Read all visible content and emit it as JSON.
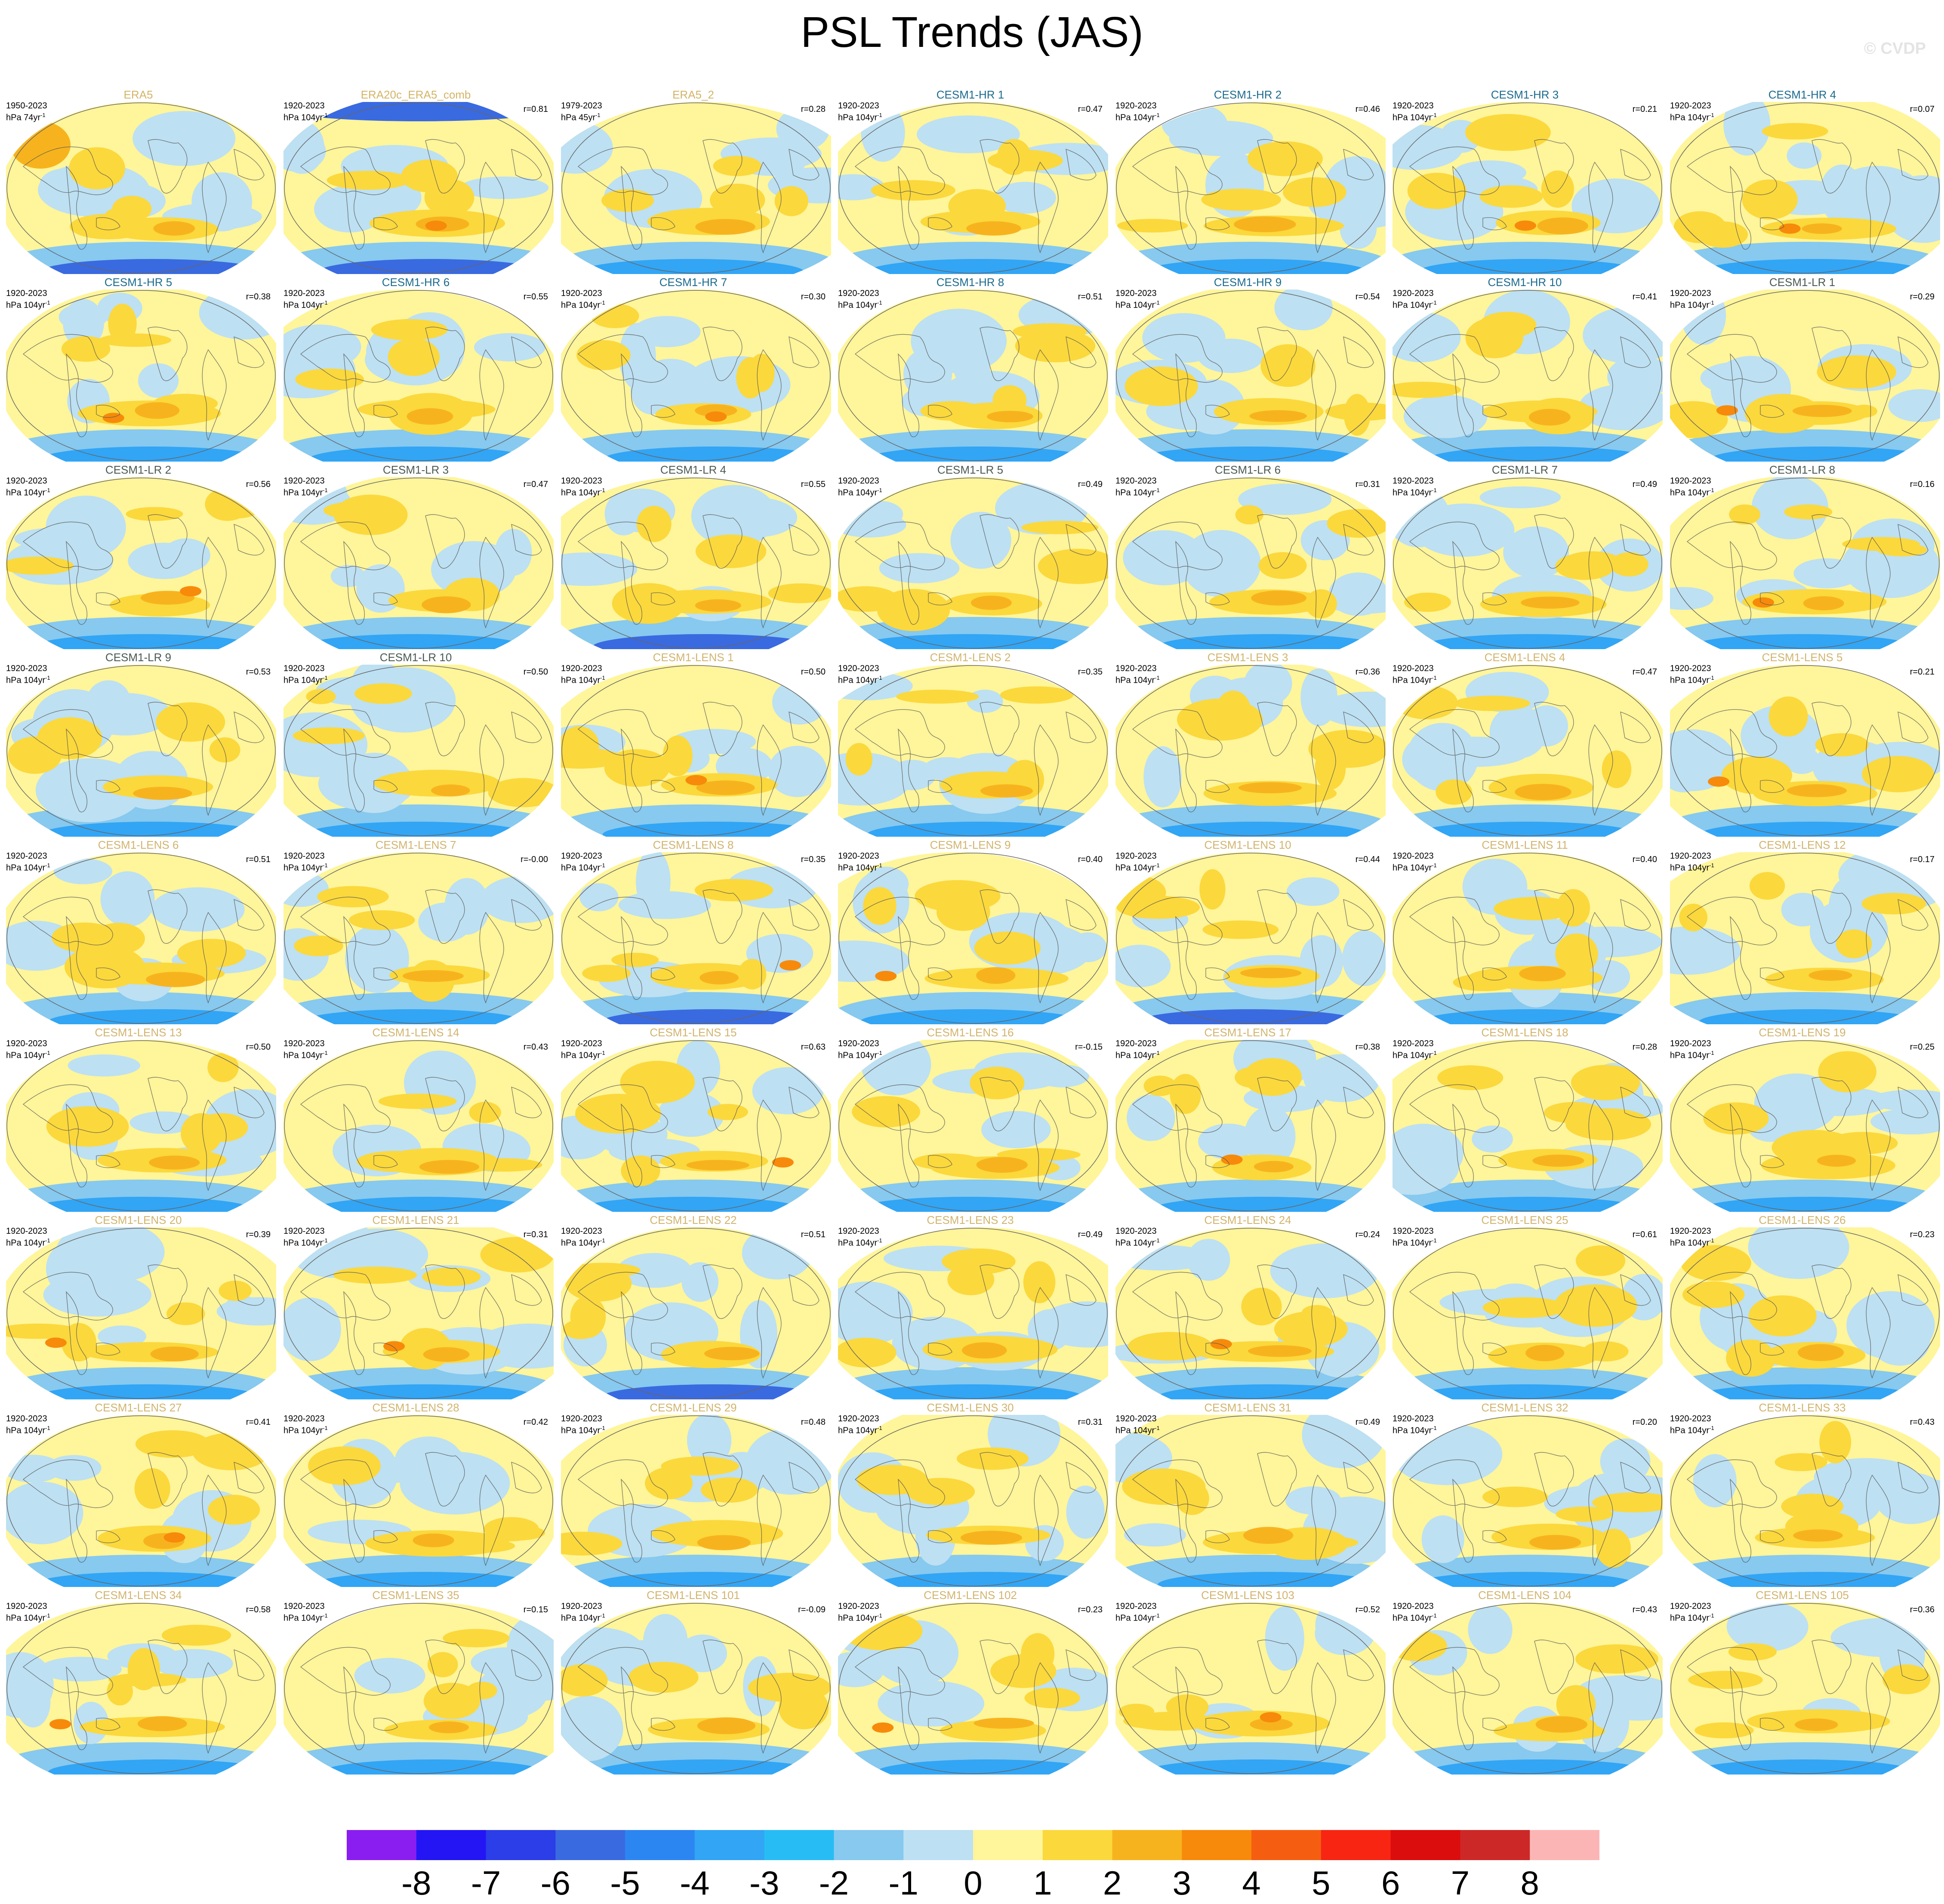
{
  "title": "PSL Trends (JAS)",
  "credit": "© CVDP",
  "panels": [
    {
      "title": "ERA5",
      "years": "1950-2023",
      "unit": "hPa 74yr",
      "r": "",
      "obs": true
    },
    {
      "title": "ERA20c_ERA5_comb",
      "years": "1920-2023",
      "unit": "hPa 104yr",
      "r": "r=0.81",
      "obs": true
    },
    {
      "title": "ERA5_2",
      "years": "1979-2023",
      "unit": "hPa 45yr",
      "r": "r=0.28",
      "obs": true
    },
    {
      "title": "CESM1-HR 1",
      "years": "1920-2023",
      "unit": "hPa 104yr",
      "r": "r=0.47"
    },
    {
      "title": "CESM1-HR 2",
      "years": "1920-2023",
      "unit": "hPa 104yr",
      "r": "r=0.46"
    },
    {
      "title": "CESM1-HR 3",
      "years": "1920-2023",
      "unit": "hPa 104yr",
      "r": "r=0.21"
    },
    {
      "title": "CESM1-HR 4",
      "years": "1920-2023",
      "unit": "hPa 104yr",
      "r": "r=0.07"
    },
    {
      "title": "CESM1-HR 5",
      "years": "1920-2023",
      "unit": "hPa 104yr",
      "r": "r=0.38"
    },
    {
      "title": "CESM1-HR 6",
      "years": "1920-2023",
      "unit": "hPa 104yr",
      "r": "r=0.55"
    },
    {
      "title": "CESM1-HR 7",
      "years": "1920-2023",
      "unit": "hPa 104yr",
      "r": "r=0.30"
    },
    {
      "title": "CESM1-HR 8",
      "years": "1920-2023",
      "unit": "hPa 104yr",
      "r": "r=0.51"
    },
    {
      "title": "CESM1-HR 9",
      "years": "1920-2023",
      "unit": "hPa 104yr",
      "r": "r=0.54"
    },
    {
      "title": "CESM1-HR 10",
      "years": "1920-2023",
      "unit": "hPa 104yr",
      "r": "r=0.41"
    },
    {
      "title": "CESM1-LR 1",
      "years": "1920-2023",
      "unit": "hPa 104yr",
      "r": "r=0.29"
    },
    {
      "title": "CESM1-LR 2",
      "years": "1920-2023",
      "unit": "hPa 104yr",
      "r": "r=0.56"
    },
    {
      "title": "CESM1-LR 3",
      "years": "1920-2023",
      "unit": "hPa 104yr",
      "r": "r=0.47"
    },
    {
      "title": "CESM1-LR 4",
      "years": "1920-2023",
      "unit": "hPa 104yr",
      "r": "r=0.55"
    },
    {
      "title": "CESM1-LR 5",
      "years": "1920-2023",
      "unit": "hPa 104yr",
      "r": "r=0.49"
    },
    {
      "title": "CESM1-LR 6",
      "years": "1920-2023",
      "unit": "hPa 104yr",
      "r": "r=0.31"
    },
    {
      "title": "CESM1-LR 7",
      "years": "1920-2023",
      "unit": "hPa 104yr",
      "r": "r=0.49"
    },
    {
      "title": "CESM1-LR 8",
      "years": "1920-2023",
      "unit": "hPa 104yr",
      "r": "r=0.16"
    },
    {
      "title": "CESM1-LR 9",
      "years": "1920-2023",
      "unit": "hPa 104yr",
      "r": "r=0.53"
    },
    {
      "title": "CESM1-LR 10",
      "years": "1920-2023",
      "unit": "hPa 104yr",
      "r": "r=0.50"
    },
    {
      "title": "CESM1-LENS 1",
      "years": "1920-2023",
      "unit": "hPa 104yr",
      "r": "r=0.50"
    },
    {
      "title": "CESM1-LENS 2",
      "years": "1920-2023",
      "unit": "hPa 104yr",
      "r": "r=0.35"
    },
    {
      "title": "CESM1-LENS 3",
      "years": "1920-2023",
      "unit": "hPa 104yr",
      "r": "r=0.36"
    },
    {
      "title": "CESM1-LENS 4",
      "years": "1920-2023",
      "unit": "hPa 104yr",
      "r": "r=0.47"
    },
    {
      "title": "CESM1-LENS 5",
      "years": "1920-2023",
      "unit": "hPa 104yr",
      "r": "r=0.21"
    },
    {
      "title": "CESM1-LENS 6",
      "years": "1920-2023",
      "unit": "hPa 104yr",
      "r": "r=0.51"
    },
    {
      "title": "CESM1-LENS 7",
      "years": "1920-2023",
      "unit": "hPa 104yr",
      "r": "r=-0.00"
    },
    {
      "title": "CESM1-LENS 8",
      "years": "1920-2023",
      "unit": "hPa 104yr",
      "r": "r=0.35"
    },
    {
      "title": "CESM1-LENS 9",
      "years": "1920-2023",
      "unit": "hPa 104yr",
      "r": "r=0.40"
    },
    {
      "title": "CESM1-LENS 10",
      "years": "1920-2023",
      "unit": "hPa 104yr",
      "r": "r=0.44"
    },
    {
      "title": "CESM1-LENS 11",
      "years": "1920-2023",
      "unit": "hPa 104yr",
      "r": "r=0.40"
    },
    {
      "title": "CESM1-LENS 12",
      "years": "1920-2023",
      "unit": "hPa 104yr",
      "r": "r=0.17"
    },
    {
      "title": "CESM1-LENS 13",
      "years": "1920-2023",
      "unit": "hPa 104yr",
      "r": "r=0.50"
    },
    {
      "title": "CESM1-LENS 14",
      "years": "1920-2023",
      "unit": "hPa 104yr",
      "r": "r=0.43"
    },
    {
      "title": "CESM1-LENS 15",
      "years": "1920-2023",
      "unit": "hPa 104yr",
      "r": "r=0.63"
    },
    {
      "title": "CESM1-LENS 16",
      "years": "1920-2023",
      "unit": "hPa 104yr",
      "r": "r=-0.15"
    },
    {
      "title": "CESM1-LENS 17",
      "years": "1920-2023",
      "unit": "hPa 104yr",
      "r": "r=0.38"
    },
    {
      "title": "CESM1-LENS 18",
      "years": "1920-2023",
      "unit": "hPa 104yr",
      "r": "r=0.28"
    },
    {
      "title": "CESM1-LENS 19",
      "years": "1920-2023",
      "unit": "hPa 104yr",
      "r": "r=0.25"
    },
    {
      "title": "CESM1-LENS 20",
      "years": "1920-2023",
      "unit": "hPa 104yr",
      "r": "r=0.39"
    },
    {
      "title": "CESM1-LENS 21",
      "years": "1920-2023",
      "unit": "hPa 104yr",
      "r": "r=0.31"
    },
    {
      "title": "CESM1-LENS 22",
      "years": "1920-2023",
      "unit": "hPa 104yr",
      "r": "r=0.51"
    },
    {
      "title": "CESM1-LENS 23",
      "years": "1920-2023",
      "unit": "hPa 104yr",
      "r": "r=0.49"
    },
    {
      "title": "CESM1-LENS 24",
      "years": "1920-2023",
      "unit": "hPa 104yr",
      "r": "r=0.24"
    },
    {
      "title": "CESM1-LENS 25",
      "years": "1920-2023",
      "unit": "hPa 104yr",
      "r": "r=0.61"
    },
    {
      "title": "CESM1-LENS 26",
      "years": "1920-2023",
      "unit": "hPa 104yr",
      "r": "r=0.23"
    },
    {
      "title": "CESM1-LENS 27",
      "years": "1920-2023",
      "unit": "hPa 104yr",
      "r": "r=0.41"
    },
    {
      "title": "CESM1-LENS 28",
      "years": "1920-2023",
      "unit": "hPa 104yr",
      "r": "r=0.42"
    },
    {
      "title": "CESM1-LENS 29",
      "years": "1920-2023",
      "unit": "hPa 104yr",
      "r": "r=0.48"
    },
    {
      "title": "CESM1-LENS 30",
      "years": "1920-2023",
      "unit": "hPa 104yr",
      "r": "r=0.31"
    },
    {
      "title": "CESM1-LENS 31",
      "years": "1920-2023",
      "unit": "hPa 104yr",
      "r": "r=0.49"
    },
    {
      "title": "CESM1-LENS 32",
      "years": "1920-2023",
      "unit": "hPa 104yr",
      "r": "r=0.20"
    },
    {
      "title": "CESM1-LENS 33",
      "years": "1920-2023",
      "unit": "hPa 104yr",
      "r": "r=0.43"
    },
    {
      "title": "CESM1-LENS 34",
      "years": "1920-2023",
      "unit": "hPa 104yr",
      "r": "r=0.58"
    },
    {
      "title": "CESM1-LENS 35",
      "years": "1920-2023",
      "unit": "hPa 104yr",
      "r": "r=0.15"
    },
    {
      "title": "CESM1-LENS 101",
      "years": "1920-2023",
      "unit": "hPa 104yr",
      "r": "r=-0.09"
    },
    {
      "title": "CESM1-LENS 102",
      "years": "1920-2023",
      "unit": "hPa 104yr",
      "r": "r=0.23"
    },
    {
      "title": "CESM1-LENS 103",
      "years": "1920-2023",
      "unit": "hPa 104yr",
      "r": "r=0.52"
    },
    {
      "title": "CESM1-LENS 104",
      "years": "1920-2023",
      "unit": "hPa 104yr",
      "r": "r=0.43"
    },
    {
      "title": "CESM1-LENS 105",
      "years": "1920-2023",
      "unit": "hPa 104yr",
      "r": "r=0.36"
    }
  ],
  "unit_superscript": "-1",
  "title_colors": {
    "obs": "#d4b466",
    "hr": "#1b6b8e",
    "lr": "#4a5a52",
    "lens": "#d2b46e"
  },
  "colorbar": {
    "labels": [
      "-8",
      "-7",
      "-6",
      "-5",
      "-4",
      "-3",
      "-2",
      "-1",
      "0",
      "1",
      "2",
      "3",
      "4",
      "5",
      "6",
      "7",
      "8"
    ],
    "colors": [
      "#8a1ef0",
      "#2415f5",
      "#2b3ee8",
      "#3a6ae0",
      "#2c86f2",
      "#32a5f5",
      "#28bcf5",
      "#87c9ef",
      "#bde0f2",
      "#fff59a",
      "#fbd83c",
      "#f7b31e",
      "#f78a0a",
      "#f55e10",
      "#f72512",
      "#dc0d0d",
      "#cd2828",
      "#fcb5b5"
    ]
  },
  "chart_data": {
    "type": "heatmap",
    "title": "PSL Trends (JAS)",
    "description_of_panels": "63 global maps (Robinson-like projection), 9 rows x 7 columns",
    "colorbar_range": [
      -8,
      8
    ],
    "colorbar_step": 1
  }
}
